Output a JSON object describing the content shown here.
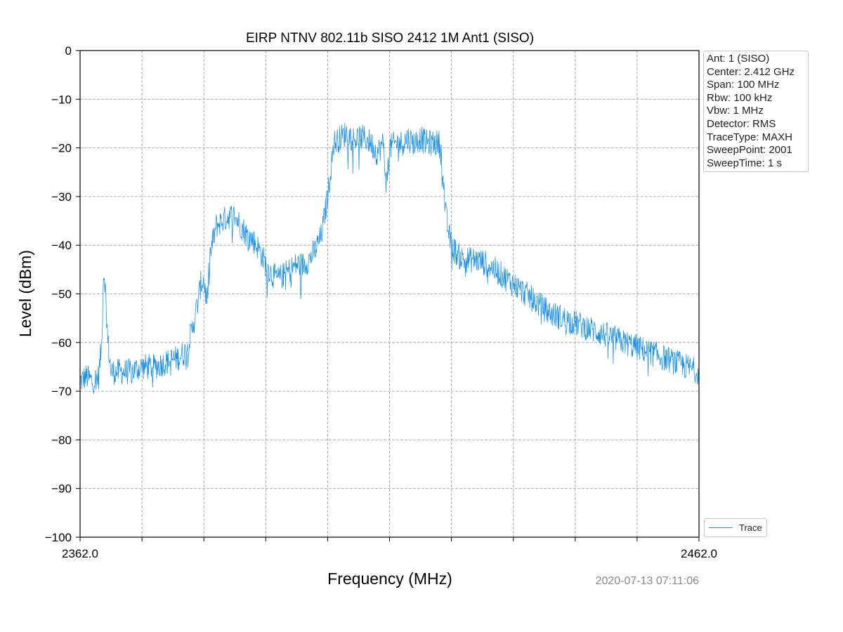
{
  "chart_data": {
    "type": "line",
    "title": "EIRP NTNV 802.11b SISO  2412 1M Ant1 (SISO)",
    "xlabel": "Frequency (MHz)",
    "ylabel": "Level (dBm)",
    "xlim": [
      2362.0,
      2462.0
    ],
    "ylim": [
      -100,
      0
    ],
    "x_tick_labels": [
      "2362.0",
      "2462.0"
    ],
    "y_ticks": [
      0,
      -10,
      -20,
      -30,
      -40,
      -50,
      -60,
      -70,
      -80,
      -90,
      -100
    ],
    "y_tick_labels": [
      "0",
      "−10",
      "−20",
      "−30",
      "−40",
      "−50",
      "−60",
      "−70",
      "−80",
      "−90",
      "−100"
    ],
    "grid": true,
    "legend_placement": "lower-right-outside",
    "series": [
      {
        "name": "Trace",
        "color": "#1a8fe6",
        "x": [
          2362.0,
          2363.0,
          2364.0,
          2365.0,
          2365.5,
          2365.8,
          2366.0,
          2366.5,
          2367.0,
          2368.0,
          2370.0,
          2372.0,
          2374.0,
          2376.0,
          2378.0,
          2379.0,
          2380.0,
          2381.0,
          2381.5,
          2382.0,
          2382.5,
          2383.0,
          2384.0,
          2385.0,
          2386.0,
          2387.0,
          2388.0,
          2389.0,
          2390.0,
          2391.0,
          2392.0,
          2393.0,
          2394.0,
          2395.0,
          2396.0,
          2397.0,
          2398.0,
          2399.0,
          2400.0,
          2401.0,
          2402.0,
          2403.0,
          2404.0,
          2405.0,
          2406.0,
          2407.0,
          2408.0,
          2409.0,
          2410.0,
          2411.0,
          2411.5,
          2412.0,
          2413.0,
          2414.0,
          2415.0,
          2416.0,
          2417.0,
          2418.0,
          2419.0,
          2420.0,
          2420.5,
          2421.0,
          2421.5,
          2422.0,
          2423.0,
          2424.0,
          2426.0,
          2428.0,
          2430.0,
          2432.0,
          2434.0,
          2436.0,
          2438.0,
          2440.0,
          2442.0,
          2444.0,
          2446.0,
          2448.0,
          2450.0,
          2452.0,
          2454.0,
          2456.0,
          2458.0,
          2460.0,
          2462.0
        ],
        "y": [
          -68,
          -67,
          -68,
          -67,
          -60,
          -45,
          -47,
          -60,
          -66,
          -66,
          -66,
          -65,
          -65,
          -64,
          -63,
          -62,
          -58,
          -52,
          -48,
          -47,
          -52,
          -42,
          -36,
          -35,
          -34,
          -34,
          -36,
          -38,
          -39,
          -41,
          -44,
          -46,
          -47,
          -46,
          -45,
          -44,
          -44,
          -43,
          -41,
          -38,
          -30,
          -19,
          -18,
          -17,
          -18,
          -18,
          -18,
          -19,
          -21,
          -19,
          -28,
          -20,
          -19,
          -19,
          -18,
          -19,
          -18,
          -19,
          -19,
          -19,
          -22,
          -33,
          -37,
          -40,
          -42,
          -43,
          -43,
          -44,
          -46,
          -48,
          -50,
          -52,
          -54,
          -55,
          -56,
          -57,
          -58,
          -59,
          -60,
          -61,
          -62,
          -63,
          -64,
          -65,
          -66
        ]
      }
    ]
  },
  "info_box": {
    "lines": [
      "Ant: 1 (SISO)",
      "Center: 2.412 GHz",
      "Span: 100 MHz",
      "Rbw: 100 kHz",
      "Vbw: 1 MHz",
      "Detector: RMS",
      "TraceType: MAXH",
      "SweepPoint: 2001",
      "SweepTime: 1 s"
    ]
  },
  "legend": {
    "label": "Trace"
  },
  "timestamp": "2020-07-13 07:11:06"
}
